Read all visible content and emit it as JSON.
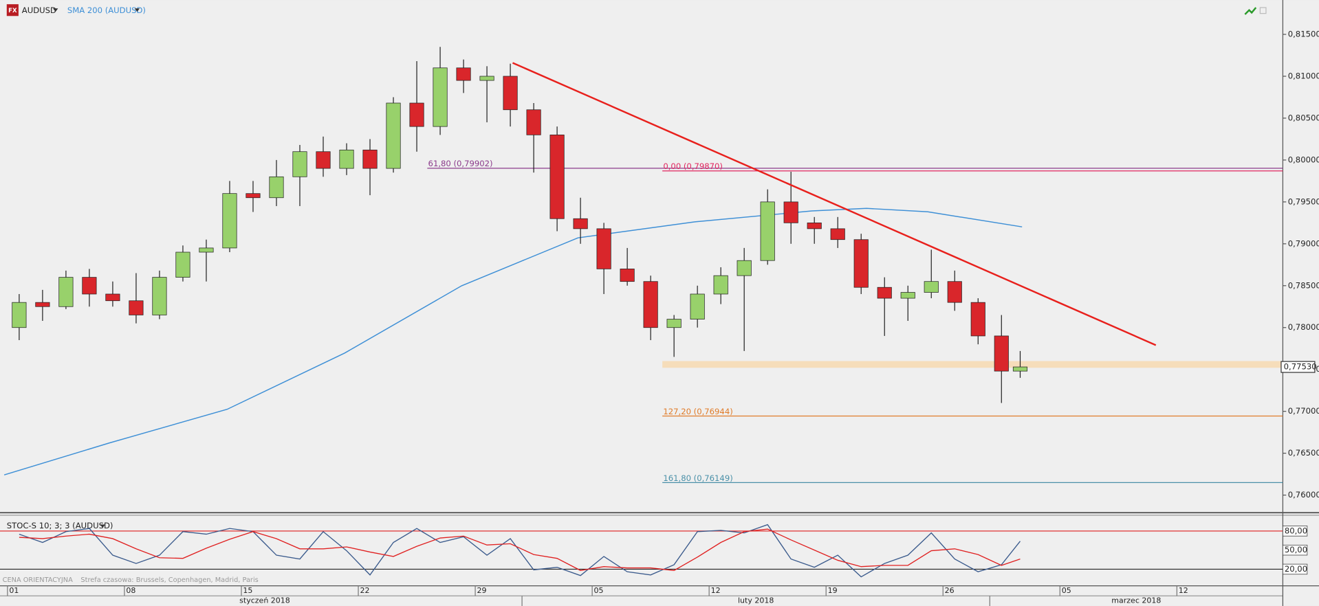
{
  "chart_data": [
    {
      "type": "candlestick",
      "logo": "FX",
      "symbol": "AUDUSD",
      "x": [
        0.5,
        1.5,
        2.5,
        3.5,
        4.5,
        5.5,
        6.5,
        7.5,
        8.5,
        9.5,
        10.5,
        11.5,
        12.5,
        13.5,
        14.5,
        15.5,
        16.5,
        17.5,
        18.5,
        19.5,
        20.5,
        21.5,
        22.5,
        23.5,
        24.5,
        25.5,
        26.5,
        27.5,
        28.5,
        29.5,
        30.5,
        31.5,
        32.5,
        33.5,
        34.5,
        35.5,
        36.5,
        37.5,
        38.5,
        39.5,
        40.5,
        41.5,
        42.5,
        43.3
      ],
      "open": [
        0.78,
        0.783,
        0.7825,
        0.786,
        0.784,
        0.7832,
        0.7815,
        0.786,
        0.789,
        0.7895,
        0.796,
        0.7955,
        0.798,
        0.801,
        0.799,
        0.8012,
        0.799,
        0.8068,
        0.804,
        0.811,
        0.8095,
        0.81,
        0.806,
        0.803,
        0.793,
        0.7918,
        0.787,
        0.7855,
        0.78,
        0.781,
        0.784,
        0.7862,
        0.788,
        0.795,
        0.7925,
        0.7918,
        0.7905,
        0.7848,
        0.7835,
        0.7842,
        0.7855,
        0.783,
        0.779,
        0.7748
      ],
      "high": [
        0.784,
        0.7845,
        0.7868,
        0.787,
        0.7855,
        0.7865,
        0.7868,
        0.7898,
        0.7905,
        0.7975,
        0.7975,
        0.8,
        0.8018,
        0.8028,
        0.802,
        0.8025,
        0.8075,
        0.8118,
        0.8135,
        0.812,
        0.8112,
        0.8115,
        0.8068,
        0.804,
        0.7955,
        0.7925,
        0.7895,
        0.7862,
        0.7815,
        0.785,
        0.7872,
        0.7895,
        0.7965,
        0.7986,
        0.7932,
        0.7932,
        0.7912,
        0.786,
        0.785,
        0.7893,
        0.7868,
        0.7835,
        0.7815,
        0.7772
      ],
      "low": [
        0.7785,
        0.7808,
        0.7822,
        0.7825,
        0.7825,
        0.7805,
        0.781,
        0.7855,
        0.7855,
        0.789,
        0.7938,
        0.7945,
        0.7945,
        0.798,
        0.7982,
        0.7958,
        0.7985,
        0.801,
        0.803,
        0.808,
        0.8045,
        0.804,
        0.7985,
        0.7915,
        0.79,
        0.784,
        0.785,
        0.7785,
        0.7765,
        0.78,
        0.7828,
        0.7772,
        0.7875,
        0.79,
        0.79,
        0.7895,
        0.784,
        0.779,
        0.7808,
        0.7835,
        0.782,
        0.778,
        0.771,
        0.774
      ],
      "close": [
        0.783,
        0.7825,
        0.786,
        0.784,
        0.7832,
        0.7815,
        0.786,
        0.789,
        0.7895,
        0.796,
        0.7955,
        0.798,
        0.801,
        0.799,
        0.8012,
        0.799,
        0.8068,
        0.804,
        0.811,
        0.8095,
        0.81,
        0.806,
        0.803,
        0.793,
        0.7918,
        0.787,
        0.7855,
        0.78,
        0.781,
        0.784,
        0.7862,
        0.788,
        0.795,
        0.7925,
        0.7918,
        0.7905,
        0.7848,
        0.7835,
        0.7842,
        0.7855,
        0.783,
        0.779,
        0.7748,
        0.7753
      ],
      "up_color": "#98d16b",
      "down_color": "#d9262b",
      "series": [
        {
          "name": "SMA 200 (AUDUSD)",
          "color": "#3d8fd6",
          "x": [
            -0.14,
            4.35,
            9.39,
            14.42,
            19.42,
            24.39,
            29.39,
            34.39,
            36.73,
            39.35,
            43.38
          ],
          "values": [
            0.76241,
            0.76622,
            0.77024,
            0.77696,
            0.78499,
            0.79071,
            0.79262,
            0.79392,
            0.79423,
            0.79382,
            0.79202
          ]
        }
      ],
      "levels": [
        {
          "label": "61,80 (0,79902)",
          "value": 0.79902,
          "x": 17.95,
          "color": "#8b3a8b"
        },
        {
          "label": "0,00 (0,79870)",
          "value": 0.7987,
          "x": 28.0,
          "color": "#e0245e"
        },
        {
          "label": "127,20 (0,76944)",
          "value": 0.76944,
          "x": 28.0,
          "color": "#e07b28"
        },
        {
          "label": "161,80 (0,76149)",
          "value": 0.76149,
          "x": 28.0,
          "color": "#4a90a8"
        }
      ],
      "trendline": {
        "x": [
          21.6,
          49.1
        ],
        "values": [
          0.8116,
          0.7779
        ],
        "color": "#e8201c"
      },
      "zone": {
        "x": 28.0,
        "values": [
          0.7752,
          0.776
        ],
        "color": "#f7d9b0"
      },
      "last_price": {
        "value": 0.7753,
        "label": "0,77530"
      },
      "xlim": [
        -0.32,
        54.53
      ],
      "ylim": [
        0.7579,
        0.8191
      ],
      "yticks": [
        {
          "value": 0.76,
          "label": "0,76000"
        },
        {
          "value": 0.765,
          "label": "0,76500"
        },
        {
          "value": 0.77,
          "label": "0,77000"
        },
        {
          "value": 0.775,
          "label": "0,77500"
        },
        {
          "value": 0.78,
          "label": "0,78000"
        },
        {
          "value": 0.785,
          "label": "0,78500"
        },
        {
          "value": 0.79,
          "label": "0,79000"
        },
        {
          "value": 0.795,
          "label": "0,79500"
        },
        {
          "value": 0.8,
          "label": "0,80000"
        },
        {
          "value": 0.805,
          "label": "0,80500"
        },
        {
          "value": 0.81,
          "label": "0,81000"
        },
        {
          "value": 0.815,
          "label": "0,81500"
        }
      ],
      "xticks": [
        {
          "value": 0,
          "label": "01"
        },
        {
          "value": 5,
          "label": "08"
        },
        {
          "value": 10,
          "label": "15"
        },
        {
          "value": 15,
          "label": "22"
        },
        {
          "value": 20,
          "label": "29"
        },
        {
          "value": 25,
          "label": "05"
        },
        {
          "value": 30,
          "label": "12"
        },
        {
          "value": 35,
          "label": "19"
        },
        {
          "value": 40,
          "label": "26"
        },
        {
          "value": 45,
          "label": "05"
        },
        {
          "value": 50,
          "label": "12"
        }
      ],
      "months": [
        {
          "value": 0,
          "label": "styczeń 2018"
        },
        {
          "value": 22,
          "label": "luty 2018"
        },
        {
          "value": 42,
          "label": "marzec 2018"
        }
      ]
    },
    {
      "type": "line",
      "title": "STOC-S 10; 3; 3 (AUDUSD)",
      "ylim": [
        -6.1,
        104.8
      ],
      "yticks": [
        {
          "value": 20,
          "label": "20,00"
        },
        {
          "value": 50,
          "label": "50,00"
        },
        {
          "value": 80,
          "label": "80,00"
        }
      ],
      "bands": [
        {
          "value": 80,
          "color": "#e03030"
        },
        {
          "value": 20,
          "color": "#222222"
        }
      ],
      "series": [
        {
          "color": "#3a5a8c",
          "values": [
            75,
            62,
            79,
            84,
            42,
            29,
            42,
            79,
            75,
            84,
            79,
            42,
            36,
            79,
            49,
            11,
            62,
            84,
            62,
            71,
            42,
            68,
            19,
            23,
            10,
            40,
            16,
            11,
            27,
            79,
            81,
            77,
            90,
            36,
            23,
            42,
            8,
            29,
            42,
            77,
            36,
            16,
            27,
            64
          ]
        },
        {
          "color": "#e02020",
          "values": [
            70,
            68,
            72,
            75,
            68,
            52,
            38,
            37,
            53,
            67,
            79,
            68,
            52,
            52,
            55,
            47,
            40,
            56,
            69,
            72,
            58,
            60,
            43,
            37,
            18,
            24,
            22,
            22,
            18,
            39,
            62,
            79,
            83,
            66,
            50,
            34,
            24,
            26,
            26,
            49,
            52,
            43,
            26,
            36
          ]
        }
      ],
      "footer": "CENA ORIENTACYJNA",
      "timezone": "Strefa czasowa: Brussels, Copenhagen, Madrid, Paris"
    }
  ]
}
